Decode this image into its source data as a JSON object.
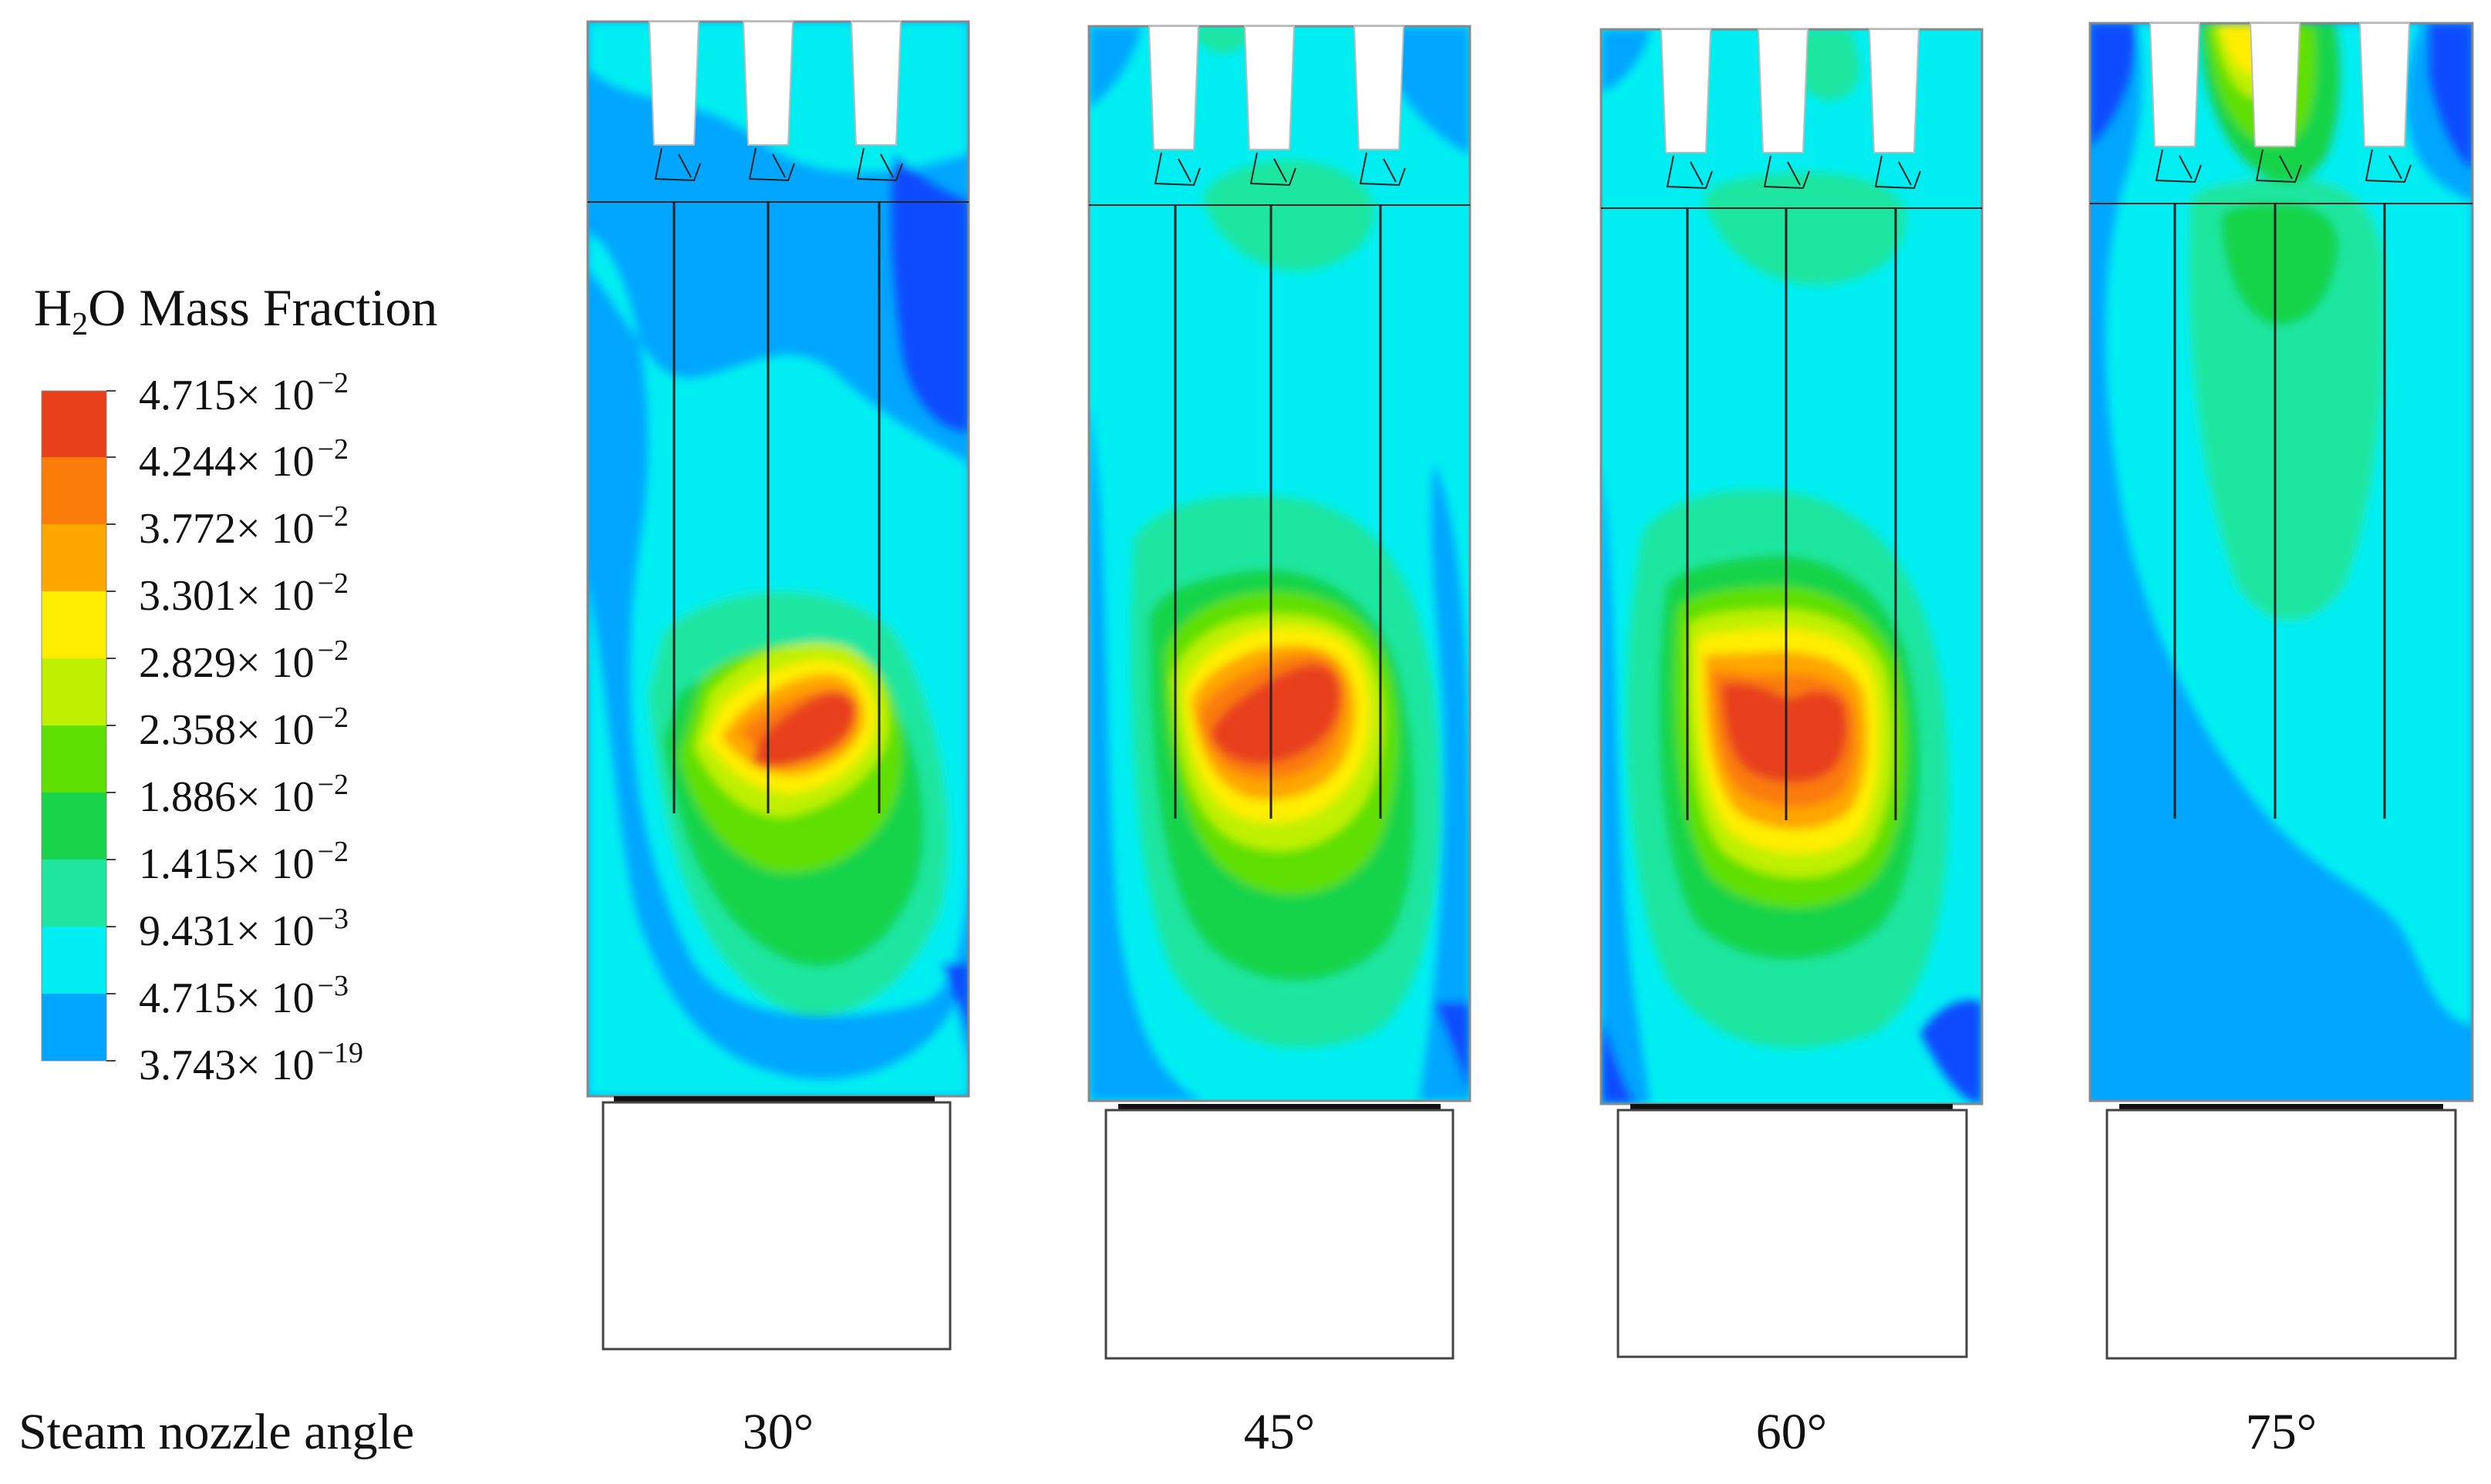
{
  "legend": {
    "title_prefix": "H",
    "title_sub": "2",
    "title_suffix": "O Mass Fraction",
    "colors": [
      "#e8401a",
      "#fb6a08",
      "#ffa600",
      "#ffe600",
      "#c9f000",
      "#6de200",
      "#1ed33c",
      "#1ee48b",
      "#00f0f2",
      "#00a9ff",
      "#0f4cff"
    ],
    "labels": [
      {
        "mant": "4.715× 10",
        "exp": "−2"
      },
      {
        "mant": "4.244× 10",
        "exp": "−2"
      },
      {
        "mant": "3.772× 10",
        "exp": "−2"
      },
      {
        "mant": "3.301× 10",
        "exp": "−2"
      },
      {
        "mant": "2.829× 10",
        "exp": "−2"
      },
      {
        "mant": "2.358× 10",
        "exp": "−2"
      },
      {
        "mant": "1.886× 10",
        "exp": "−2"
      },
      {
        "mant": "1.415× 10",
        "exp": "−2"
      },
      {
        "mant": "9.431× 10",
        "exp": "−3"
      },
      {
        "mant": "4.715× 10",
        "exp": "−3"
      },
      {
        "mant": "3.743× 10",
        "exp": "−19"
      }
    ]
  },
  "row_caption": "Steam nozzle angle",
  "panels": [
    {
      "angle": "30°"
    },
    {
      "angle": "45°"
    },
    {
      "angle": "60°"
    },
    {
      "angle": "75°"
    }
  ]
}
